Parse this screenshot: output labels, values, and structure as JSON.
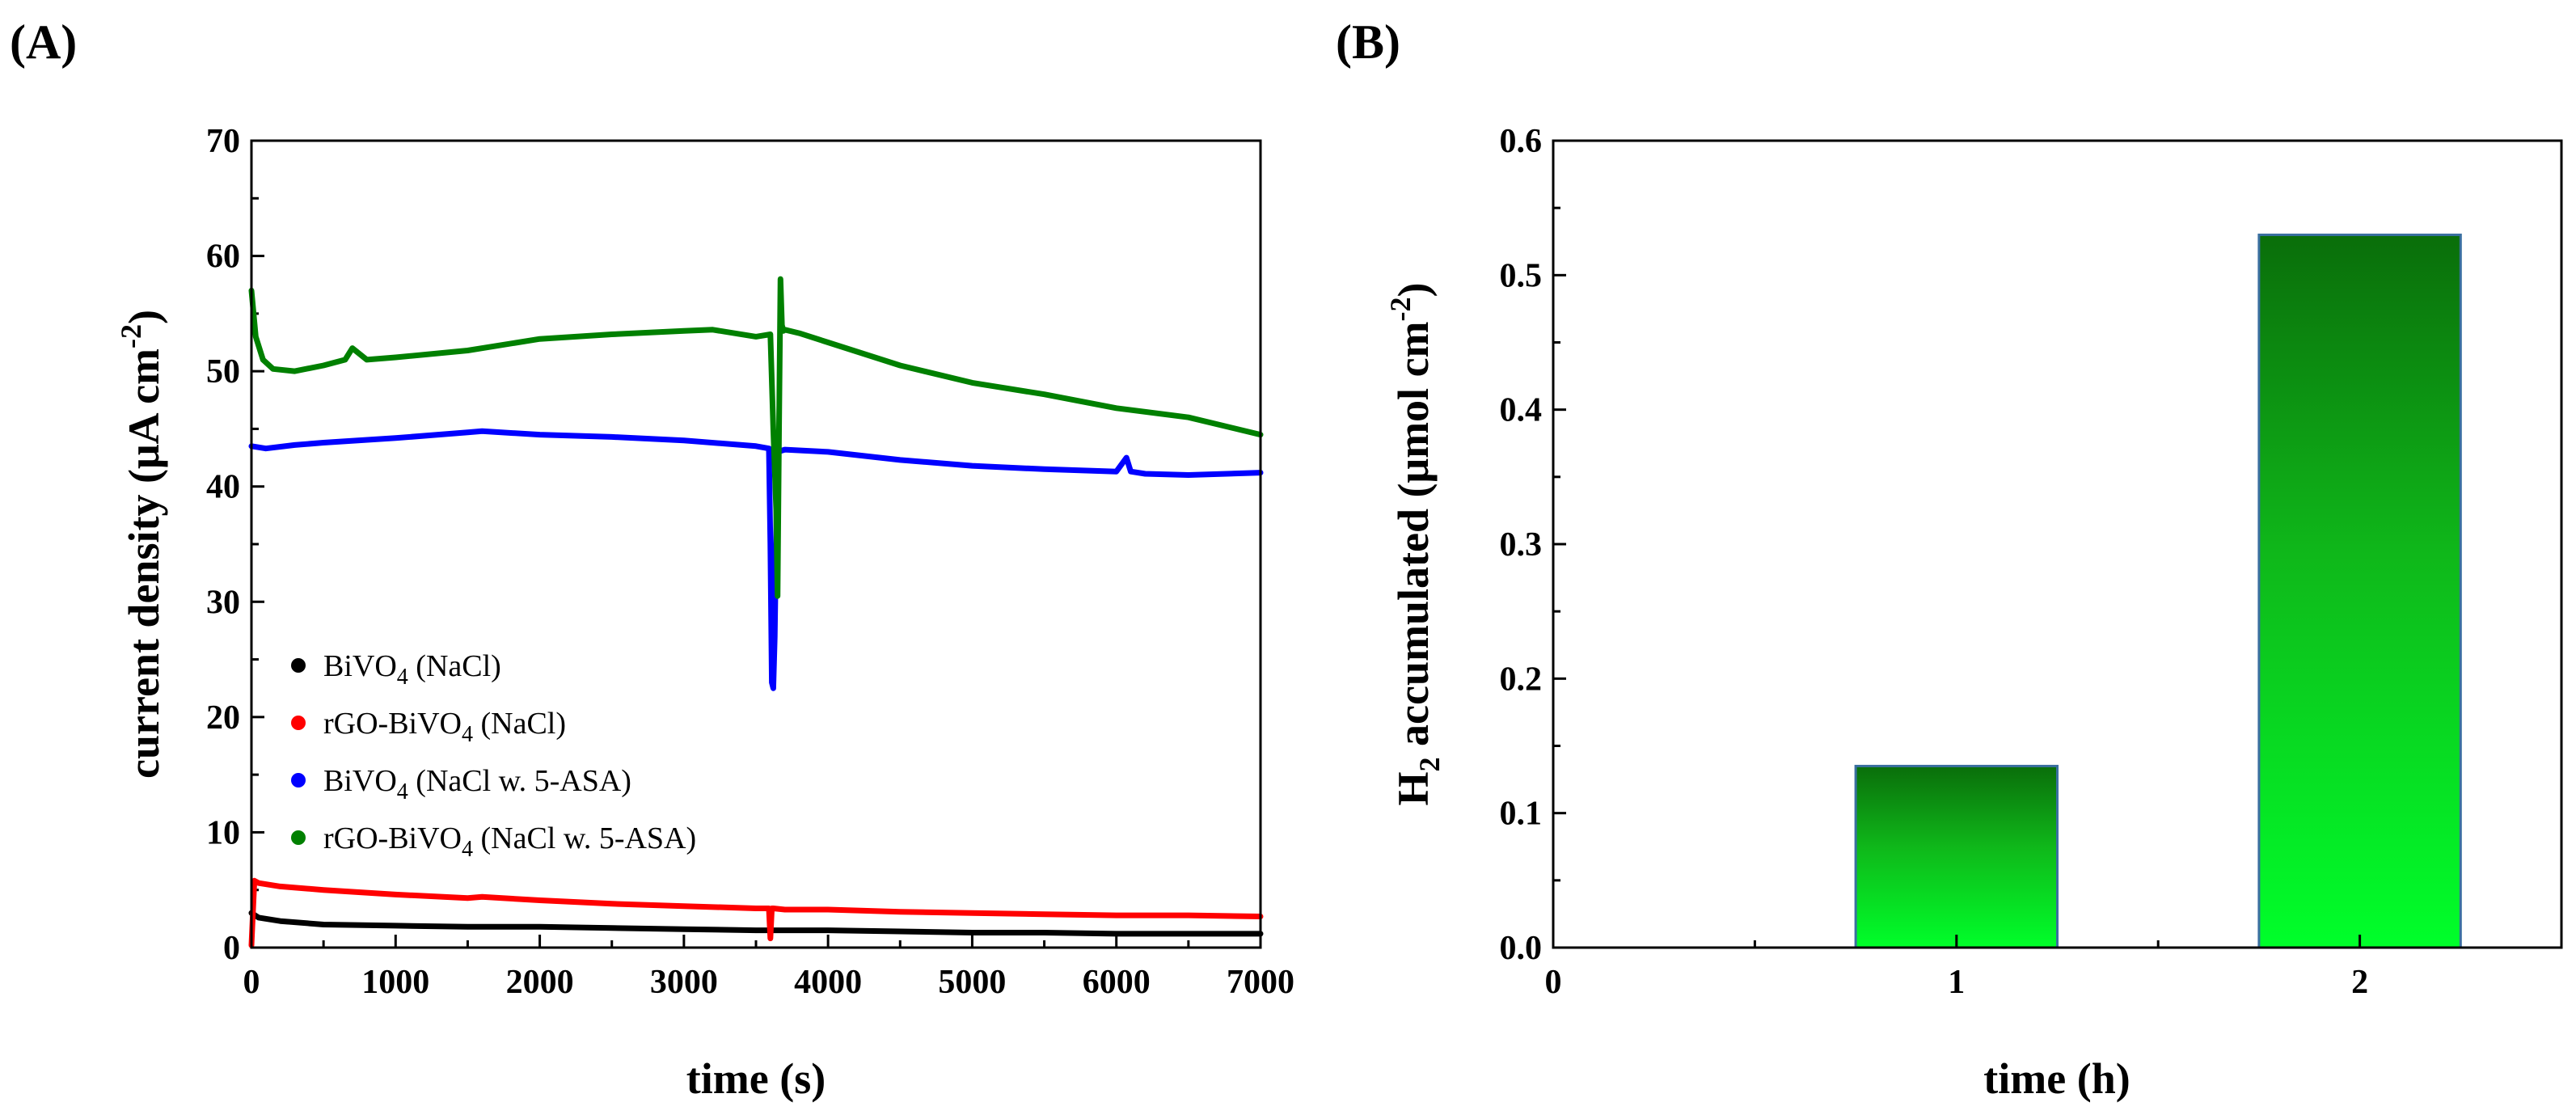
{
  "panels": {
    "a": {
      "label": "(A)"
    },
    "b": {
      "label": "(B)"
    }
  },
  "chart_data": [
    {
      "id": "A",
      "type": "line",
      "title": "",
      "xlabel": "time (s)",
      "ylabel": {
        "main": "current density (μA cm",
        "sup": "-2",
        "close": ")"
      },
      "xlim": [
        0,
        7000
      ],
      "ylim": [
        0,
        70
      ],
      "xticks": [
        0,
        1000,
        2000,
        3000,
        4000,
        5000,
        6000,
        7000
      ],
      "yticks": [
        0,
        10,
        20,
        30,
        40,
        50,
        60,
        70
      ],
      "grid": false,
      "legend_position": "bottom-left",
      "series": [
        {
          "key": "black",
          "name": "BiVO4 (NaCl)",
          "legend": {
            "pre": "BiVO",
            "sub": "4",
            "post": " (NaCl)"
          },
          "color": "#000000",
          "x": [
            0,
            50,
            200,
            500,
            1000,
            1500,
            2000,
            2500,
            3000,
            3500,
            3590,
            3600,
            3700,
            4000,
            4500,
            5000,
            5500,
            6000,
            6500,
            7000
          ],
          "y": [
            3.0,
            2.6,
            2.3,
            2.0,
            1.9,
            1.8,
            1.8,
            1.7,
            1.6,
            1.5,
            1.5,
            1.5,
            1.5,
            1.5,
            1.4,
            1.3,
            1.3,
            1.2,
            1.2,
            1.2
          ]
        },
        {
          "key": "red",
          "name": "rGO-BiVO4 (NaCl)",
          "legend": {
            "pre": "rGO-BiVO",
            "sub": "4",
            "post": " (NaCl)"
          },
          "color": "#ff0000",
          "x": [
            0,
            20,
            50,
            200,
            500,
            1000,
            1500,
            1600,
            2000,
            2500,
            3000,
            3500,
            3590,
            3600,
            3610,
            3620,
            3700,
            4000,
            4500,
            5000,
            5500,
            6000,
            6500,
            7000
          ],
          "y": [
            0.2,
            5.8,
            5.6,
            5.3,
            5.0,
            4.6,
            4.3,
            4.4,
            4.1,
            3.8,
            3.6,
            3.4,
            3.4,
            0.8,
            3.4,
            3.4,
            3.3,
            3.3,
            3.1,
            3.0,
            2.9,
            2.8,
            2.8,
            2.7
          ]
        },
        {
          "key": "blue",
          "name": "BiVO4 (NaCl w. 5-ASA)",
          "legend": {
            "pre": "BiVO",
            "sub": "4",
            "post": " (NaCl w. 5-ASA)"
          },
          "color": "#0000ff",
          "x": [
            0,
            100,
            300,
            500,
            1000,
            1500,
            1600,
            2000,
            2500,
            3000,
            3500,
            3590,
            3600,
            3610,
            3620,
            3630,
            3640,
            3650,
            3700,
            4000,
            4500,
            5000,
            5500,
            6000,
            6070,
            6100,
            6200,
            6500,
            7000
          ],
          "y": [
            43.5,
            43.3,
            43.6,
            43.8,
            44.2,
            44.7,
            44.8,
            44.5,
            44.3,
            44.0,
            43.5,
            43.3,
            35.0,
            23.0,
            22.5,
            27.0,
            36.0,
            43.0,
            43.2,
            43.0,
            42.3,
            41.8,
            41.5,
            41.3,
            42.5,
            41.3,
            41.1,
            41.0,
            41.2
          ]
        },
        {
          "key": "green",
          "name": "rGO-BiVO4 (NaCl w. 5-ASA)",
          "legend": {
            "pre": "rGO-BiVO",
            "sub": "4",
            "post": " (NaCl w. 5-ASA)"
          },
          "color": "#008000",
          "x": [
            0,
            30,
            80,
            150,
            300,
            500,
            650,
            700,
            800,
            1000,
            1500,
            2000,
            2500,
            3000,
            3200,
            3500,
            3600,
            3620,
            3640,
            3650,
            3660,
            3670,
            3680,
            3690,
            3700,
            3800,
            4000,
            4500,
            5000,
            5500,
            6000,
            6500,
            7000
          ],
          "y": [
            57.0,
            53.0,
            51.0,
            50.2,
            50.0,
            50.5,
            51.0,
            52.0,
            51.0,
            51.2,
            51.8,
            52.8,
            53.2,
            53.5,
            53.6,
            53.0,
            53.2,
            45.0,
            38.0,
            30.5,
            45.0,
            58.0,
            54.0,
            53.5,
            53.6,
            53.3,
            52.5,
            50.5,
            49.0,
            48.0,
            46.8,
            46.0,
            44.5
          ]
        }
      ]
    },
    {
      "id": "B",
      "type": "bar",
      "title": "",
      "xlabel": "time (h)",
      "ylabel": {
        "main": "H",
        "sub": "2",
        "rest": " accumulated (μmol cm",
        "sup": "-2",
        "close": ")"
      },
      "categories": [
        1,
        2
      ],
      "values": [
        0.135,
        0.53
      ],
      "xlim": [
        0,
        2.5
      ],
      "ylim": [
        0,
        0.6
      ],
      "xticks": [
        0,
        1,
        2
      ],
      "yticks": [
        0.0,
        0.1,
        0.2,
        0.3,
        0.4,
        0.5,
        0.6
      ],
      "ytick_labels": [
        "0.0",
        "0.1",
        "0.2",
        "0.3",
        "0.4",
        "0.5",
        "0.6"
      ],
      "bar_width_units": 0.5,
      "bar_gradient": [
        "#0a6e0a",
        "#00ff2a"
      ],
      "bar_edge_color": "#3a6fa0",
      "grid": false
    }
  ]
}
